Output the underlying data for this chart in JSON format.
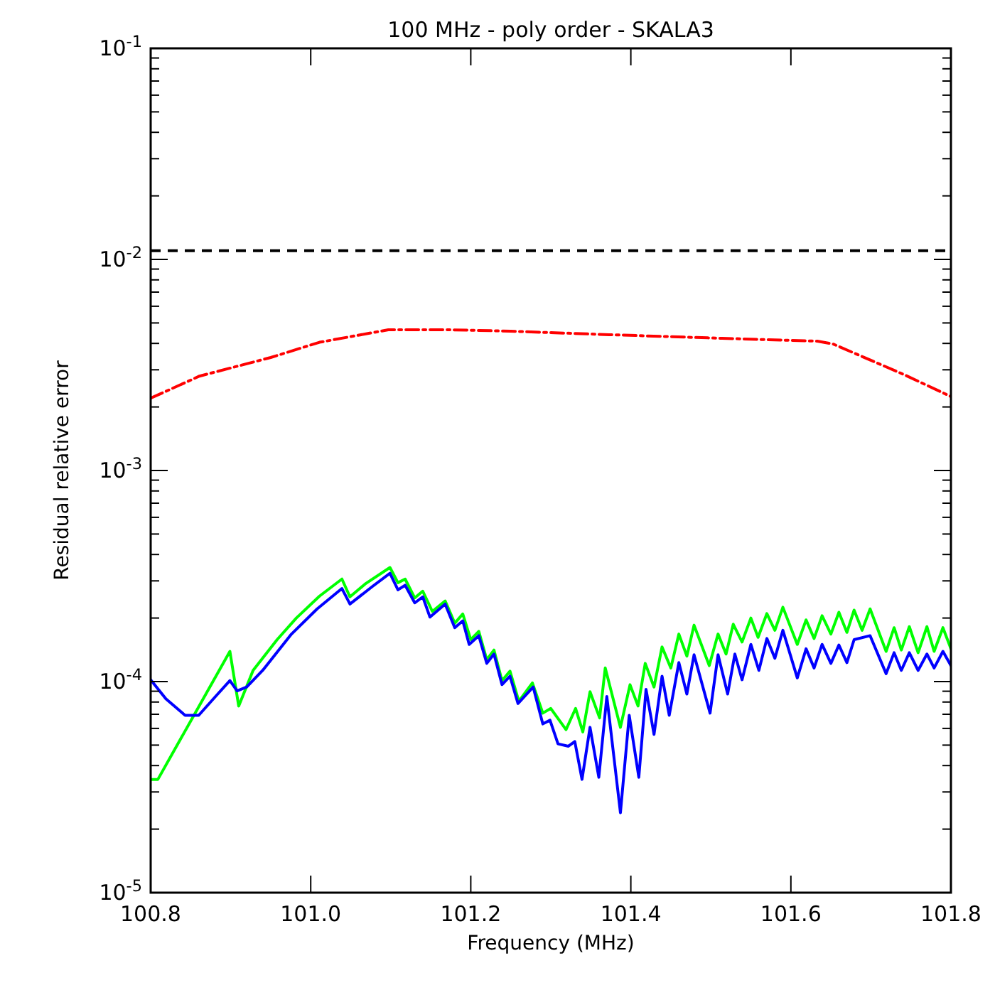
{
  "chart_data": {
    "type": "line",
    "title": "100 MHz - poly order - SKALA3",
    "xlabel": "Frequency (MHz)",
    "ylabel": "Residual relative error",
    "log": "y",
    "grid": false,
    "marker": "none",
    "xlim": [
      100.8,
      101.8
    ],
    "xticks": [
      {
        "value": 100.8,
        "label": "100.8"
      },
      {
        "value": 101.0,
        "label": "101.0"
      },
      {
        "value": 101.2,
        "label": "101.2"
      },
      {
        "value": 101.4,
        "label": "101.4"
      },
      {
        "value": 101.6,
        "label": "101.6"
      },
      {
        "value": 101.8,
        "label": "101.8"
      }
    ],
    "ylim": [
      1e-05,
      0.1
    ],
    "yticks": [
      {
        "value": 1e-05,
        "label": "10$^{-5}$"
      },
      {
        "value": 2e-05,
        "label": null
      },
      {
        "value": 3e-05,
        "label": null
      },
      {
        "value": 4e-05,
        "label": null
      },
      {
        "value": 5e-05,
        "label": null
      },
      {
        "value": 6e-05,
        "label": null
      },
      {
        "value": 7e-05,
        "label": null
      },
      {
        "value": 8e-05,
        "label": null
      },
      {
        "value": 9e-05,
        "label": null
      },
      {
        "value": 0.0001,
        "label": "10$^{-4}$"
      },
      {
        "value": 0.0002,
        "label": null
      },
      {
        "value": 0.0003,
        "label": null
      },
      {
        "value": 0.0004,
        "label": null
      },
      {
        "value": 0.0005,
        "label": null
      },
      {
        "value": 0.0006,
        "label": null
      },
      {
        "value": 0.0007,
        "label": null
      },
      {
        "value": 0.0008,
        "label": null
      },
      {
        "value": 0.0009,
        "label": null
      },
      {
        "value": 0.001,
        "label": "10$^{-3}$"
      },
      {
        "value": 0.002,
        "label": null
      },
      {
        "value": 0.003,
        "label": null
      },
      {
        "value": 0.004,
        "label": null
      },
      {
        "value": 0.005,
        "label": null
      },
      {
        "value": 0.006,
        "label": null
      },
      {
        "value": 0.007,
        "label": null
      },
      {
        "value": 0.008,
        "label": null
      },
      {
        "value": 0.009,
        "label": null
      },
      {
        "value": 0.01,
        "label": "10$^{-2}$"
      },
      {
        "value": 0.02,
        "label": null
      },
      {
        "value": 0.03,
        "label": null
      },
      {
        "value": 0.04,
        "label": null
      },
      {
        "value": 0.05,
        "label": null
      },
      {
        "value": 0.06,
        "label": null
      },
      {
        "value": 0.07,
        "label": null
      },
      {
        "value": 0.08,
        "label": null
      },
      {
        "value": 0.09,
        "label": null
      },
      {
        "value": 0.1,
        "label": "10$^{-1}$"
      }
    ],
    "ref_lines": [
      {
        "axis": "y",
        "value": 0.011,
        "label": null,
        "color": "#000000",
        "line_style": "dashed"
      }
    ],
    "series": [
      {
        "color": "#ff0000",
        "line_style": "dashed",
        "x": [
          100.8,
          100.861,
          100.95,
          101.011,
          101.097,
          101.175,
          101.25,
          101.373,
          101.496,
          101.633,
          101.653,
          101.742,
          101.8
        ],
        "values": [
          0.0022,
          0.0028,
          0.00343,
          0.00405,
          0.00464,
          0.00464,
          0.00457,
          0.0044,
          0.00425,
          0.0041,
          0.00397,
          0.00284,
          0.00224
        ]
      },
      {
        "color": "#00ff00",
        "line_style": "solid",
        "x": [
          100.8,
          100.809,
          100.899,
          100.91,
          100.928,
          100.958,
          100.982,
          101.011,
          101.039,
          101.049,
          101.068,
          101.099,
          101.109,
          101.118,
          101.13,
          101.14,
          101.152,
          101.168,
          101.18,
          101.19,
          101.2,
          101.21,
          101.22,
          101.229,
          101.239,
          101.249,
          101.26,
          101.277,
          101.29,
          101.3,
          101.319,
          101.331,
          101.34,
          101.349,
          101.361,
          101.368,
          101.387,
          101.399,
          101.409,
          101.418,
          101.429,
          101.439,
          101.45,
          101.46,
          101.47,
          101.479,
          101.498,
          101.509,
          101.519,
          101.528,
          101.539,
          101.55,
          101.559,
          101.57,
          101.58,
          101.59,
          101.608,
          101.619,
          101.629,
          101.639,
          101.65,
          101.66,
          101.67,
          101.679,
          101.689,
          101.699,
          101.719,
          101.729,
          101.738,
          101.748,
          101.759,
          101.77,
          101.779,
          101.79,
          101.8
        ],
        "values": [
          3.44e-05,
          3.44e-05,
          0.000139,
          7.66e-05,
          0.000113,
          0.000158,
          0.0002,
          0.000254,
          0.000306,
          0.000252,
          0.00029,
          0.000347,
          0.000294,
          0.000306,
          0.000249,
          0.000268,
          0.000215,
          0.000241,
          0.000189,
          0.000209,
          0.000158,
          0.000173,
          0.000127,
          0.000141,
          0.000101,
          0.000112,
          8.07e-05,
          9.85e-05,
          7.09e-05,
          7.46e-05,
          5.92e-05,
          7.46e-05,
          5.77e-05,
          8.95e-05,
          6.73e-05,
          0.000116,
          6.07e-05,
          9.67e-05,
          7.66e-05,
          0.000122,
          9.42e-05,
          0.000146,
          0.000116,
          0.000168,
          0.000132,
          0.000185,
          0.000119,
          0.000168,
          0.000135,
          0.000187,
          0.000154,
          0.0002,
          0.000162,
          0.00021,
          0.000175,
          0.000225,
          0.00015,
          0.000196,
          0.00016,
          0.000205,
          0.000168,
          0.000213,
          0.000171,
          0.000218,
          0.000175,
          0.000221,
          0.000139,
          0.00018,
          0.000141,
          0.000182,
          0.000137,
          0.000182,
          0.000139,
          0.00018,
          0.000143
        ]
      },
      {
        "color": "#0000ff",
        "line_style": "solid",
        "x": [
          100.8,
          100.819,
          100.843,
          100.86,
          100.881,
          100.899,
          100.908,
          100.92,
          100.94,
          100.976,
          101.008,
          101.039,
          101.049,
          101.077,
          101.099,
          101.109,
          101.118,
          101.13,
          101.14,
          101.149,
          101.168,
          101.18,
          101.19,
          101.198,
          101.21,
          101.22,
          101.229,
          101.239,
          101.249,
          101.259,
          101.278,
          101.29,
          101.299,
          101.309,
          101.322,
          101.33,
          101.339,
          101.349,
          101.36,
          101.37,
          101.387,
          101.398,
          101.41,
          101.419,
          101.429,
          101.439,
          101.448,
          101.46,
          101.47,
          101.479,
          101.499,
          101.509,
          101.521,
          101.53,
          101.539,
          101.55,
          101.56,
          101.57,
          101.58,
          101.59,
          101.608,
          101.619,
          101.629,
          101.639,
          101.65,
          101.66,
          101.67,
          101.679,
          101.699,
          101.719,
          101.729,
          101.738,
          101.748,
          101.759,
          101.77,
          101.779,
          101.79,
          101.8
        ],
        "values": [
          0.000102,
          8.28e-05,
          6.92e-05,
          6.92e-05,
          8.5e-05,
          0.000101,
          9.04e-05,
          9.42e-05,
          0.000113,
          0.000168,
          0.000221,
          0.000276,
          0.000233,
          0.000282,
          0.000326,
          0.000272,
          0.000286,
          0.000236,
          0.000252,
          0.000202,
          0.000233,
          0.00018,
          0.000194,
          0.00015,
          0.000165,
          0.000122,
          0.000135,
          9.67e-05,
          0.000106,
          7.87e-05,
          9.42e-05,
          6.3e-05,
          6.56e-05,
          5.07e-05,
          4.94e-05,
          5.2e-05,
          3.44e-05,
          6.07e-05,
          3.52e-05,
          8.5e-05,
          2.39e-05,
          6.92e-05,
          3.52e-05,
          9.18e-05,
          5.62e-05,
          0.000106,
          6.92e-05,
          0.000123,
          8.73e-05,
          0.000134,
          7.09e-05,
          0.000134,
          8.73e-05,
          0.000135,
          0.000102,
          0.00015,
          0.000113,
          0.00016,
          0.000129,
          0.000175,
          0.000104,
          0.000143,
          0.000116,
          0.00015,
          0.000122,
          0.000149,
          0.000123,
          0.000158,
          0.000165,
          0.000109,
          0.000137,
          0.000113,
          0.000137,
          0.000113,
          0.000135,
          0.000116,
          0.000139,
          0.000119
        ]
      }
    ]
  }
}
